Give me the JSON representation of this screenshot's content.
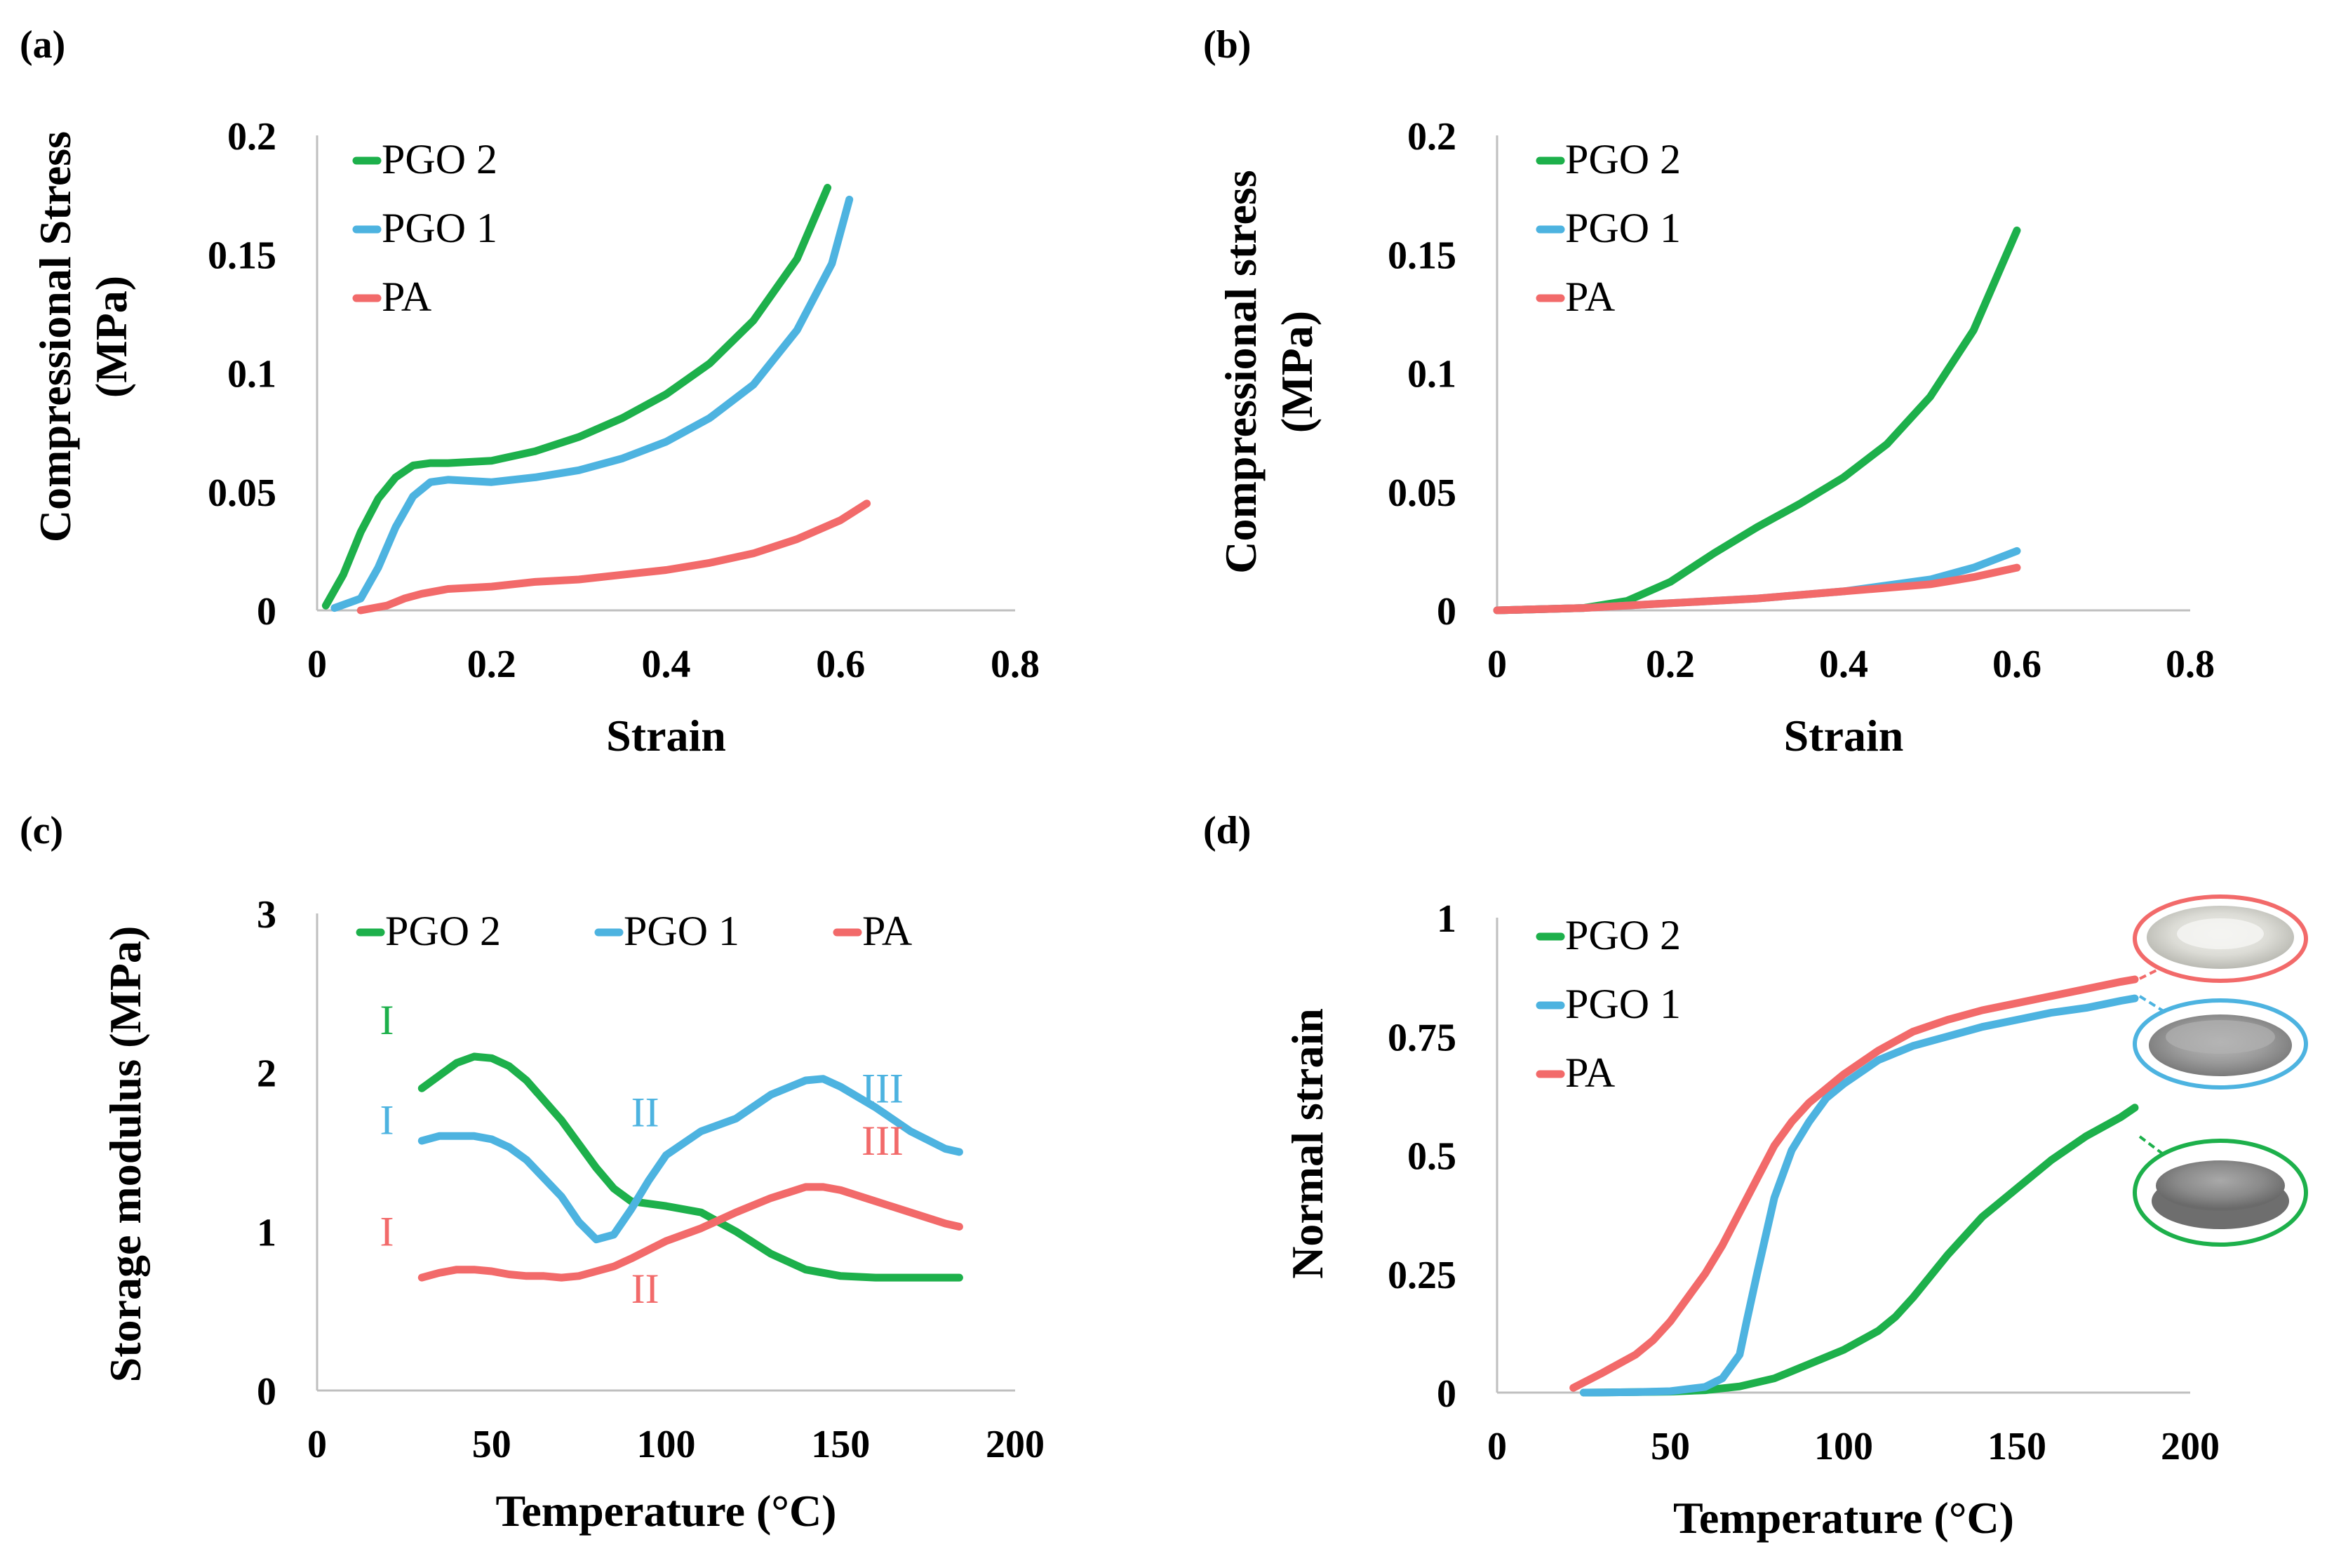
{
  "colors": {
    "PGO 2": "#1db04b",
    "PGO 1": "#4db3e0",
    "PA": "#f26a6a"
  },
  "chart_data": [
    {
      "panel": "(a)",
      "type": "line",
      "xlabel": "Strain",
      "ylabel": [
        "Compressional Stress",
        "(MPa)"
      ],
      "xlim": [
        0,
        0.8
      ],
      "ylim": [
        0,
        0.2
      ],
      "xticks": [
        0,
        0.2,
        0.4,
        0.6,
        0.8
      ],
      "xtick_labels": [
        "0",
        "0.2",
        "0.4",
        "0.6",
        "0.8"
      ],
      "yticks": [
        0,
        0.05,
        0.1,
        0.15,
        0.2
      ],
      "ytick_labels": [
        "0",
        "0.05",
        "0.1",
        "0.15",
        "0.2"
      ],
      "legend": [
        "PGO 2",
        "PGO 1",
        "PA"
      ],
      "legend_layout": "vertical",
      "series": [
        {
          "name": "PGO 2",
          "x": [
            0.01,
            0.03,
            0.05,
            0.07,
            0.09,
            0.11,
            0.13,
            0.15,
            0.2,
            0.25,
            0.3,
            0.35,
            0.4,
            0.45,
            0.5,
            0.55,
            0.585
          ],
          "y": [
            0.002,
            0.015,
            0.033,
            0.047,
            0.056,
            0.061,
            0.062,
            0.062,
            0.063,
            0.067,
            0.073,
            0.081,
            0.091,
            0.104,
            0.122,
            0.148,
            0.178
          ]
        },
        {
          "name": "PGO 1",
          "x": [
            0.02,
            0.05,
            0.07,
            0.09,
            0.11,
            0.13,
            0.15,
            0.2,
            0.25,
            0.3,
            0.35,
            0.4,
            0.45,
            0.5,
            0.55,
            0.59,
            0.61
          ],
          "y": [
            0.001,
            0.005,
            0.018,
            0.035,
            0.048,
            0.054,
            0.055,
            0.054,
            0.056,
            0.059,
            0.064,
            0.071,
            0.081,
            0.095,
            0.118,
            0.146,
            0.173
          ]
        },
        {
          "name": "PA",
          "x": [
            0.05,
            0.08,
            0.1,
            0.12,
            0.15,
            0.2,
            0.25,
            0.3,
            0.35,
            0.4,
            0.45,
            0.5,
            0.55,
            0.6,
            0.63
          ],
          "y": [
            0.0,
            0.002,
            0.005,
            0.007,
            0.009,
            0.01,
            0.012,
            0.013,
            0.015,
            0.017,
            0.02,
            0.024,
            0.03,
            0.038,
            0.045
          ]
        }
      ]
    },
    {
      "panel": "(b)",
      "type": "line",
      "xlabel": "Strain",
      "ylabel": [
        "Compressional stress",
        "(MPa)"
      ],
      "xlim": [
        0,
        0.8
      ],
      "ylim": [
        0,
        0.2
      ],
      "xticks": [
        0,
        0.2,
        0.4,
        0.6,
        0.8
      ],
      "xtick_labels": [
        "0",
        "0.2",
        "0.4",
        "0.6",
        "0.8"
      ],
      "yticks": [
        0,
        0.05,
        0.1,
        0.15,
        0.2
      ],
      "ytick_labels": [
        "0",
        "0.05",
        "0.1",
        "0.15",
        "0.2"
      ],
      "legend": [
        "PGO 2",
        "PGO 1",
        "PA"
      ],
      "legend_layout": "vertical",
      "series": [
        {
          "name": "PGO 2",
          "x": [
            0.0,
            0.1,
            0.15,
            0.2,
            0.25,
            0.3,
            0.35,
            0.4,
            0.45,
            0.5,
            0.55,
            0.6
          ],
          "y": [
            0.0,
            0.001,
            0.004,
            0.012,
            0.024,
            0.035,
            0.045,
            0.056,
            0.07,
            0.09,
            0.118,
            0.16
          ]
        },
        {
          "name": "PGO 1",
          "x": [
            0.0,
            0.1,
            0.2,
            0.3,
            0.4,
            0.5,
            0.55,
            0.6
          ],
          "y": [
            0.0,
            0.001,
            0.003,
            0.005,
            0.008,
            0.013,
            0.018,
            0.025
          ]
        },
        {
          "name": "PA",
          "x": [
            0.0,
            0.1,
            0.2,
            0.3,
            0.4,
            0.5,
            0.55,
            0.6
          ],
          "y": [
            0.0,
            0.001,
            0.003,
            0.005,
            0.008,
            0.011,
            0.014,
            0.018
          ]
        }
      ]
    },
    {
      "panel": "(c)",
      "type": "line",
      "xlabel": "Temperature (°C)",
      "ylabel": [
        "Storage modulus (MPa)"
      ],
      "xlim": [
        0,
        200
      ],
      "ylim": [
        0,
        3
      ],
      "xticks": [
        0,
        50,
        100,
        150,
        200
      ],
      "xtick_labels": [
        "0",
        "50",
        "100",
        "150",
        "200"
      ],
      "yticks": [
        0,
        1,
        2,
        3
      ],
      "ytick_labels": [
        "0",
        "1",
        "2",
        "3"
      ],
      "legend": [
        "PGO 2",
        "PGO 1",
        "PA"
      ],
      "legend_layout": "horizontal",
      "series": [
        {
          "name": "PGO 2",
          "x": [
            30,
            35,
            40,
            45,
            50,
            55,
            60,
            70,
            80,
            85,
            90,
            100,
            110,
            120,
            130,
            140,
            150,
            160,
            170,
            180,
            184
          ],
          "y": [
            1.9,
            1.98,
            2.06,
            2.1,
            2.09,
            2.04,
            1.95,
            1.7,
            1.4,
            1.27,
            1.19,
            1.16,
            1.12,
            1.0,
            0.86,
            0.76,
            0.72,
            0.71,
            0.71,
            0.71,
            0.71
          ]
        },
        {
          "name": "PGO 1",
          "x": [
            30,
            35,
            40,
            45,
            50,
            55,
            60,
            70,
            75,
            80,
            85,
            90,
            95,
            100,
            110,
            120,
            130,
            140,
            145,
            150,
            160,
            170,
            180,
            184
          ],
          "y": [
            1.57,
            1.6,
            1.6,
            1.6,
            1.58,
            1.53,
            1.45,
            1.22,
            1.06,
            0.95,
            0.98,
            1.14,
            1.32,
            1.48,
            1.63,
            1.71,
            1.86,
            1.95,
            1.96,
            1.91,
            1.78,
            1.63,
            1.52,
            1.5
          ]
        },
        {
          "name": "PA",
          "x": [
            30,
            35,
            40,
            45,
            50,
            55,
            60,
            65,
            70,
            75,
            80,
            85,
            90,
            100,
            110,
            120,
            130,
            140,
            145,
            150,
            160,
            170,
            180,
            184
          ],
          "y": [
            0.71,
            0.74,
            0.76,
            0.76,
            0.75,
            0.73,
            0.72,
            0.72,
            0.71,
            0.72,
            0.75,
            0.78,
            0.83,
            0.94,
            1.02,
            1.12,
            1.21,
            1.28,
            1.28,
            1.26,
            1.19,
            1.12,
            1.05,
            1.03
          ]
        }
      ],
      "annotations": [
        {
          "text": "I",
          "series": "PGO 2",
          "x": 20,
          "y": 2.33
        },
        {
          "text": "I",
          "series": "PGO 1",
          "x": 20,
          "y": 1.7
        },
        {
          "text": "I",
          "series": "PA",
          "x": 20,
          "y": 1.0
        },
        {
          "text": "II",
          "series": "PGO 1",
          "x": 94,
          "y": 1.75
        },
        {
          "text": "II",
          "series": "PA",
          "x": 94,
          "y": 0.64
        },
        {
          "text": "III",
          "series": "PGO 1",
          "x": 162,
          "y": 1.9
        },
        {
          "text": "III",
          "series": "PA",
          "x": 162,
          "y": 1.57
        }
      ]
    },
    {
      "panel": "(d)",
      "type": "line",
      "xlabel": "Temperature (°C)",
      "ylabel": [
        "Normal strain"
      ],
      "xlim": [
        0,
        200
      ],
      "ylim": [
        0,
        1
      ],
      "xticks": [
        0,
        50,
        100,
        150,
        200
      ],
      "xtick_labels": [
        "0",
        "50",
        "100",
        "150",
        "200"
      ],
      "yticks": [
        0,
        0.25,
        0.5,
        0.75,
        1
      ],
      "ytick_labels": [
        "0",
        "0.25",
        "0.5",
        "0.75",
        "1"
      ],
      "legend": [
        "PGO 2",
        "PGO 1",
        "PA"
      ],
      "legend_layout": "vertical",
      "series": [
        {
          "name": "PGO 2",
          "x": [
            25,
            40,
            50,
            60,
            70,
            80,
            90,
            100,
            110,
            115,
            120,
            130,
            140,
            150,
            160,
            170,
            180,
            184
          ],
          "y": [
            0.0,
            0.001,
            0.002,
            0.005,
            0.013,
            0.03,
            0.06,
            0.09,
            0.13,
            0.16,
            0.2,
            0.29,
            0.37,
            0.43,
            0.49,
            0.54,
            0.58,
            0.6
          ]
        },
        {
          "name": "PGO 1",
          "x": [
            25,
            40,
            50,
            60,
            65,
            70,
            72,
            75,
            80,
            85,
            90,
            95,
            100,
            110,
            120,
            130,
            140,
            150,
            160,
            170,
            180,
            184
          ],
          "y": [
            0.0,
            0.001,
            0.003,
            0.012,
            0.03,
            0.08,
            0.15,
            0.25,
            0.41,
            0.51,
            0.57,
            0.62,
            0.65,
            0.7,
            0.73,
            0.75,
            0.77,
            0.785,
            0.8,
            0.81,
            0.825,
            0.83
          ]
        },
        {
          "name": "PA",
          "x": [
            22,
            30,
            40,
            45,
            50,
            55,
            60,
            65,
            70,
            75,
            80,
            85,
            90,
            100,
            110,
            120,
            130,
            140,
            150,
            160,
            170,
            180,
            184
          ],
          "y": [
            0.01,
            0.04,
            0.08,
            0.11,
            0.15,
            0.2,
            0.25,
            0.31,
            0.38,
            0.45,
            0.52,
            0.57,
            0.61,
            0.67,
            0.72,
            0.76,
            0.785,
            0.805,
            0.82,
            0.835,
            0.85,
            0.865,
            0.87
          ]
        }
      ]
    }
  ]
}
